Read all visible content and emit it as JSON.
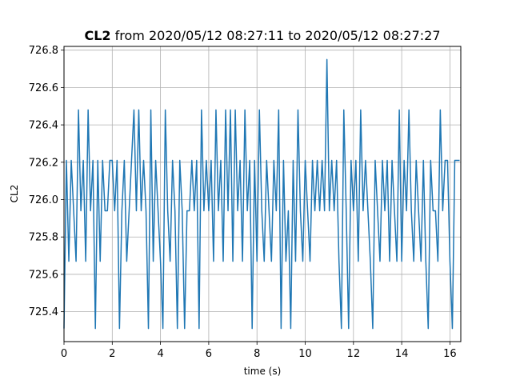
{
  "chart_data": {
    "type": "line",
    "title_bold": "CL2",
    "title_rest": " from 2020/05/12 08:27:11 to 2020/05/12 08:27:27",
    "xlabel": "time (s)",
    "ylabel": "CL2",
    "xlim": [
      0,
      16.45
    ],
    "ylim": [
      725.24,
      726.82
    ],
    "xticks": [
      0,
      2,
      4,
      6,
      8,
      10,
      12,
      14,
      16
    ],
    "xtick_labels": [
      "0",
      "2",
      "4",
      "6",
      "8",
      "10",
      "12",
      "14",
      "16"
    ],
    "yticks": [
      725.4,
      725.6,
      725.8,
      726.0,
      726.2,
      726.4,
      726.6,
      726.8
    ],
    "ytick_labels": [
      "725.4",
      "725.6",
      "725.8",
      "726.0",
      "726.2",
      "726.4",
      "726.6",
      "726.8"
    ],
    "grid": true,
    "line_color": "#1f77b4",
    "series": [
      {
        "x": [
          0.0,
          0.1,
          0.2,
          0.3,
          0.4,
          0.5,
          0.6,
          0.7,
          0.8,
          0.9,
          1.0,
          1.1,
          1.2,
          1.3,
          1.4,
          1.5,
          1.6,
          1.7,
          1.8,
          1.9,
          2.0,
          2.1,
          2.2,
          2.3,
          2.4,
          2.5,
          2.6,
          2.7,
          2.8,
          2.9,
          3.0,
          3.1,
          3.2,
          3.3,
          3.4,
          3.5,
          3.6,
          3.7,
          3.8,
          3.9,
          4.0,
          4.1,
          4.2,
          4.3,
          4.4,
          4.5,
          4.6,
          4.7,
          4.8,
          4.9,
          5.0,
          5.1,
          5.2,
          5.3,
          5.4,
          5.5,
          5.6,
          5.7,
          5.8,
          5.9,
          6.0,
          6.1,
          6.2,
          6.3,
          6.4,
          6.5,
          6.6,
          6.7,
          6.8,
          6.9,
          7.0,
          7.1,
          7.2,
          7.3,
          7.4,
          7.5,
          7.6,
          7.7,
          7.8,
          7.9,
          8.0,
          8.1,
          8.2,
          8.3,
          8.4,
          8.5,
          8.6,
          8.7,
          8.8,
          8.9,
          9.0,
          9.1,
          9.2,
          9.3,
          9.4,
          9.5,
          9.6,
          9.7,
          9.8,
          9.9,
          10.0,
          10.1,
          10.2,
          10.3,
          10.4,
          10.5,
          10.6,
          10.7,
          10.8,
          10.9,
          11.0,
          11.1,
          11.2,
          11.3,
          11.4,
          11.5,
          11.6,
          11.7,
          11.8,
          11.9,
          12.0,
          12.1,
          12.2,
          12.3,
          12.4,
          12.5,
          12.6,
          12.7,
          12.8,
          12.9,
          13.0,
          13.1,
          13.2,
          13.3,
          13.4,
          13.5,
          13.6,
          13.7,
          13.8,
          13.9,
          14.0,
          14.1,
          14.2,
          14.3,
          14.4,
          14.5,
          14.6,
          14.7,
          14.8,
          14.9,
          15.0,
          15.1,
          15.2,
          15.3,
          15.4,
          15.5,
          15.6,
          15.7,
          15.8,
          15.9,
          16.0,
          16.1,
          16.2,
          16.3,
          16.4
        ],
        "y": [
          725.31,
          726.21,
          725.67,
          726.21,
          725.94,
          725.67,
          726.48,
          725.94,
          726.21,
          725.67,
          726.48,
          725.94,
          726.21,
          725.31,
          726.21,
          725.67,
          726.21,
          725.94,
          725.94,
          726.21,
          726.21,
          725.94,
          726.21,
          725.31,
          725.94,
          726.21,
          725.67,
          725.94,
          726.21,
          726.48,
          725.94,
          726.48,
          725.94,
          726.21,
          725.94,
          725.31,
          726.48,
          725.67,
          726.21,
          725.94,
          725.67,
          725.31,
          726.48,
          725.94,
          725.67,
          726.21,
          725.94,
          725.31,
          726.21,
          725.94,
          725.31,
          725.94,
          725.94,
          726.21,
          725.94,
          726.21,
          725.31,
          726.48,
          725.94,
          726.21,
          725.94,
          726.21,
          725.67,
          726.48,
          725.94,
          726.21,
          725.67,
          726.48,
          725.94,
          726.48,
          725.67,
          726.48,
          725.94,
          726.21,
          725.67,
          726.48,
          725.94,
          726.21,
          725.31,
          726.21,
          725.67,
          726.48,
          725.94,
          725.67,
          726.21,
          725.94,
          725.67,
          726.21,
          725.94,
          726.48,
          725.31,
          726.21,
          725.67,
          725.94,
          725.31,
          726.21,
          725.67,
          726.48,
          725.94,
          725.67,
          726.21,
          725.94,
          725.67,
          726.21,
          725.94,
          726.21,
          725.94,
          726.21,
          725.94,
          726.75,
          725.94,
          726.21,
          725.94,
          726.21,
          725.67,
          725.31,
          726.48,
          725.94,
          725.31,
          726.21,
          725.94,
          726.21,
          725.67,
          726.48,
          725.94,
          726.21,
          725.94,
          725.67,
          725.31,
          726.21,
          725.94,
          725.67,
          726.21,
          725.94,
          726.21,
          725.67,
          726.21,
          725.94,
          725.67,
          726.48,
          725.67,
          726.21,
          725.94,
          726.48,
          725.94,
          725.67,
          726.21,
          725.94,
          725.67,
          726.21,
          725.67,
          725.31,
          726.21,
          725.94,
          725.94,
          725.67,
          726.48,
          725.94,
          726.21,
          726.21,
          725.67,
          725.31,
          726.21,
          726.21,
          726.21
        ]
      }
    ]
  }
}
